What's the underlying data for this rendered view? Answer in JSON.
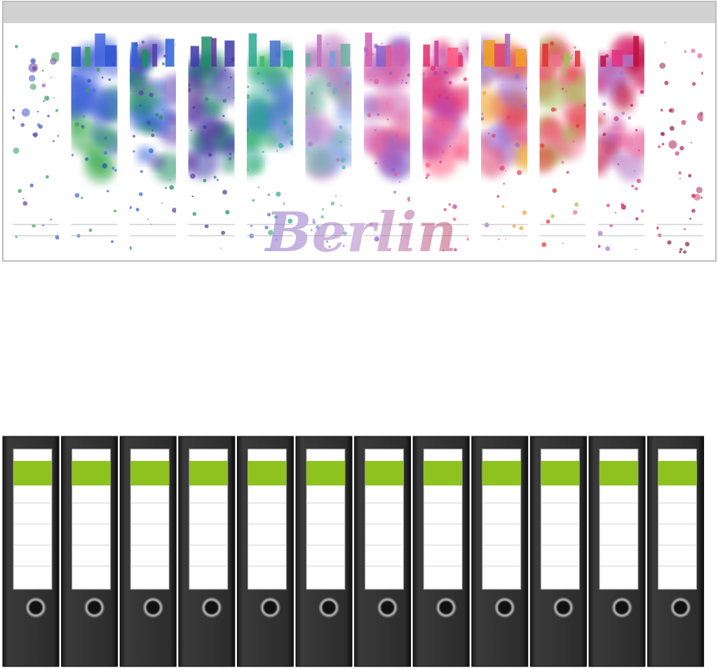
{
  "label_sheet": {
    "title": "Berlin"
  }
}
